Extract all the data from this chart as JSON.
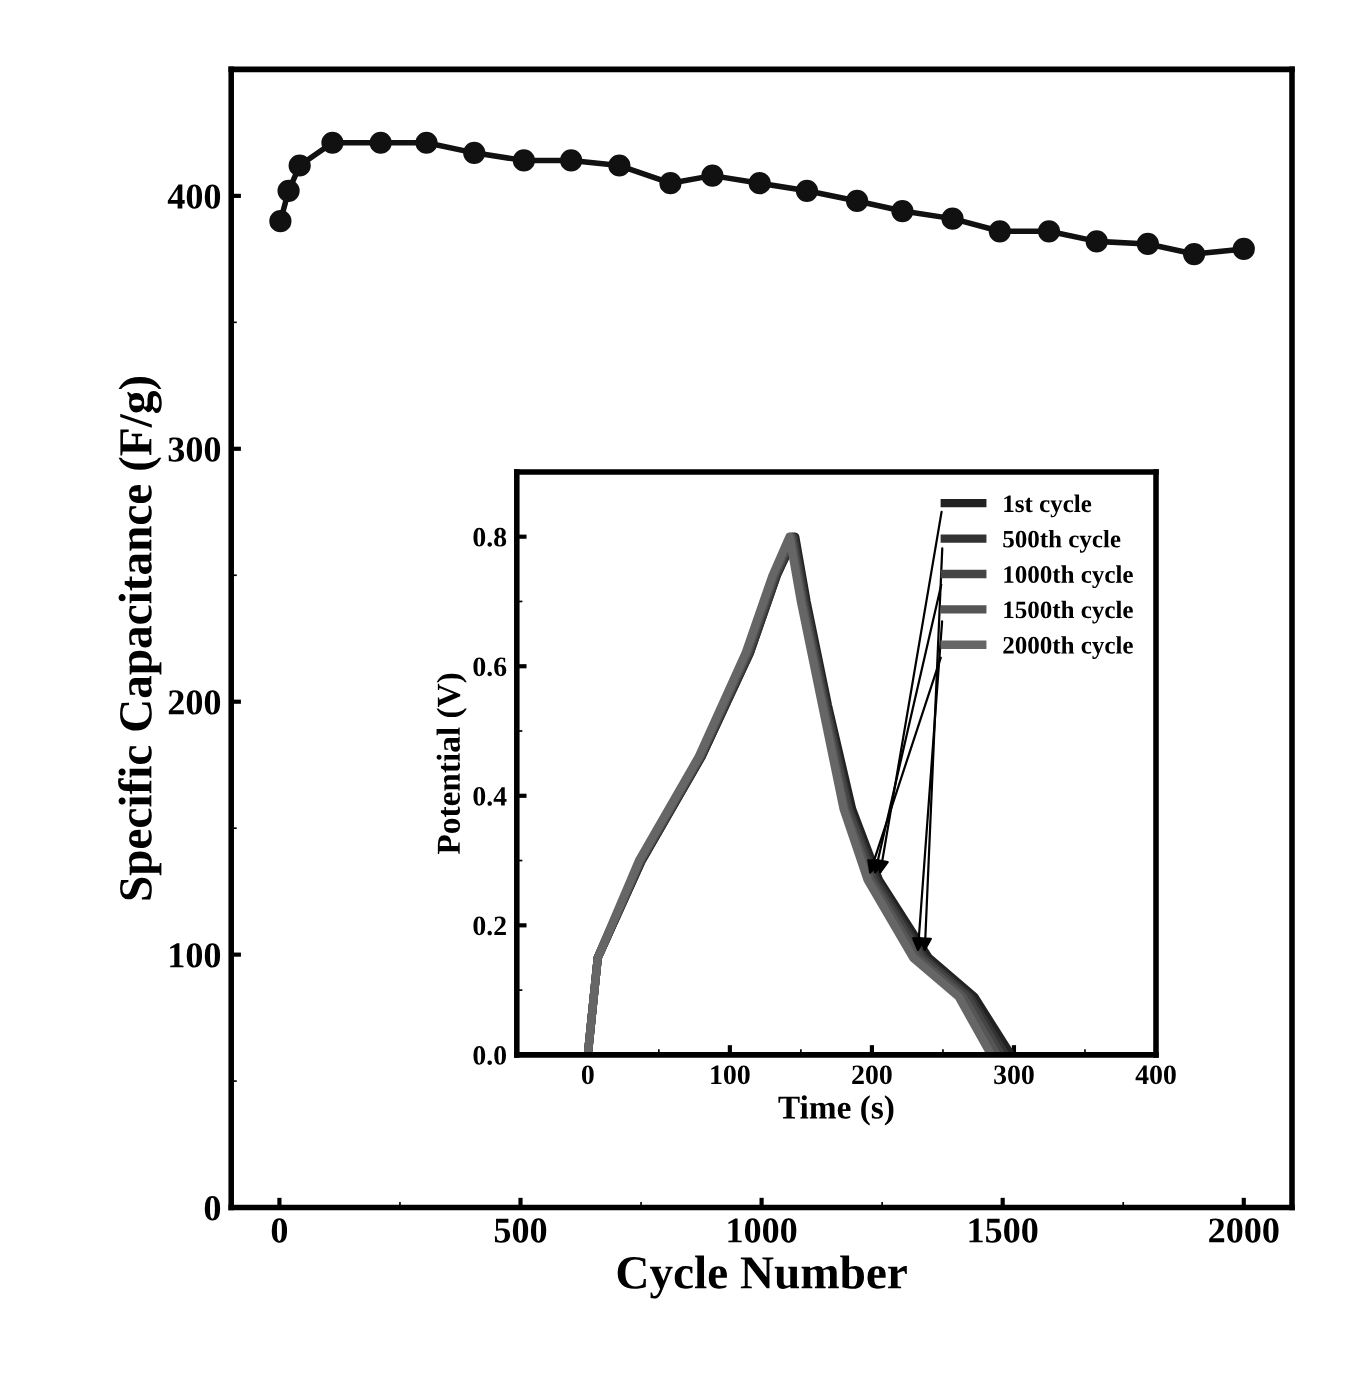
{
  "chart_data": [
    {
      "type": "line",
      "xlabel": "Cycle Number",
      "ylabel": "Specific Capacitance (F/g)",
      "marker": "circle",
      "line_style": "solid",
      "grid": false,
      "legend": false,
      "xlim": [
        -100,
        2100
      ],
      "ylim": [
        0,
        450
      ],
      "xticks": [
        0,
        {
          "value": 250,
          "label": null
        },
        500,
        {
          "value": 750,
          "label": null
        },
        1000,
        {
          "value": 1250,
          "label": null
        },
        1500,
        {
          "value": 1750,
          "label": null
        },
        2000
      ],
      "yticks": [
        0,
        {
          "value": 50,
          "label": null
        },
        100,
        {
          "value": 150,
          "label": null
        },
        200,
        {
          "value": 250,
          "label": null
        },
        300,
        {
          "value": 350,
          "label": null
        },
        400
      ],
      "series": [
        {
          "color": "#111111",
          "x": [
            2,
            19,
            42,
            110,
            210,
            305,
            404,
            507,
            605,
            705,
            811,
            898,
            996,
            1094,
            1198,
            1292,
            1396,
            1494,
            1596,
            1695,
            1801,
            1897,
            2000
          ],
          "values": [
            390,
            402,
            412,
            421,
            421,
            421,
            417,
            414,
            414,
            412,
            405,
            408,
            405,
            402,
            398,
            394,
            391,
            386,
            386,
            382,
            381,
            377,
            379
          ]
        }
      ]
    },
    {
      "type": "line",
      "xlabel": "Time (s)",
      "ylabel": "Potential (V)",
      "legend": "top right",
      "grid": false,
      "marker": "none",
      "line_style": "solid",
      "xlim": [
        -50,
        400
      ],
      "ylim": [
        0,
        0.9
      ],
      "xticks": [
        0,
        {
          "value": 50,
          "label": null
        },
        100,
        {
          "value": 150,
          "label": null
        },
        200,
        {
          "value": 250,
          "label": null
        },
        300,
        {
          "value": 350,
          "label": null
        },
        400
      ],
      "yticks": [
        {
          "value": 0,
          "label": "0.0"
        },
        {
          "value": 0.1,
          "label": null
        },
        {
          "value": 0.2,
          "label": "0.2"
        },
        {
          "value": 0.3,
          "label": null
        },
        {
          "value": 0.4,
          "label": "0.4"
        },
        {
          "value": 0.5,
          "label": null
        },
        {
          "value": 0.6,
          "label": "0.6"
        },
        {
          "value": 0.7,
          "label": null
        },
        {
          "value": 0.8,
          "label": "0.8"
        }
      ],
      "series": [
        {
          "name": "1st cycle",
          "color": "#222222",
          "x": [
            0,
            7,
            38,
            80,
            114,
            133,
            146,
            154,
            169,
            186,
            205,
            240,
            272,
            298
          ],
          "values": [
            0,
            0.15,
            0.3,
            0.46,
            0.62,
            0.74,
            0.8,
            0.7,
            0.54,
            0.38,
            0.27,
            0.15,
            0.09,
            0
          ]
        },
        {
          "name": "500th cycle",
          "color": "#333333",
          "x": [
            0,
            7,
            38,
            80,
            114,
            133,
            145,
            153,
            168,
            184,
            203,
            237,
            269,
            294
          ],
          "values": [
            0,
            0.15,
            0.3,
            0.46,
            0.62,
            0.74,
            0.8,
            0.7,
            0.54,
            0.38,
            0.27,
            0.15,
            0.09,
            0
          ]
        },
        {
          "name": "1000th cycle",
          "color": "#444444",
          "x": [
            0,
            7,
            37,
            79,
            113,
            132,
            144,
            152,
            167,
            183,
            201,
            235,
            267,
            291
          ],
          "values": [
            0,
            0.15,
            0.3,
            0.46,
            0.62,
            0.74,
            0.8,
            0.7,
            0.54,
            0.38,
            0.27,
            0.15,
            0.09,
            0
          ]
        },
        {
          "name": "1500th cycle",
          "color": "#555555",
          "x": [
            0,
            7,
            37,
            79,
            112,
            131,
            143,
            151,
            166,
            181,
            199,
            232,
            264,
            288
          ],
          "values": [
            0,
            0.15,
            0.3,
            0.46,
            0.62,
            0.74,
            0.8,
            0.7,
            0.54,
            0.38,
            0.27,
            0.15,
            0.09,
            0
          ]
        },
        {
          "name": "2000th cycle",
          "color": "#666666",
          "x": [
            0,
            7,
            36,
            78,
            111,
            130,
            142,
            150,
            165,
            180,
            197,
            229,
            261,
            284
          ],
          "values": [
            0,
            0.15,
            0.3,
            0.46,
            0.62,
            0.74,
            0.8,
            0.7,
            0.54,
            0.38,
            0.27,
            0.15,
            0.09,
            0
          ]
        }
      ]
    }
  ]
}
